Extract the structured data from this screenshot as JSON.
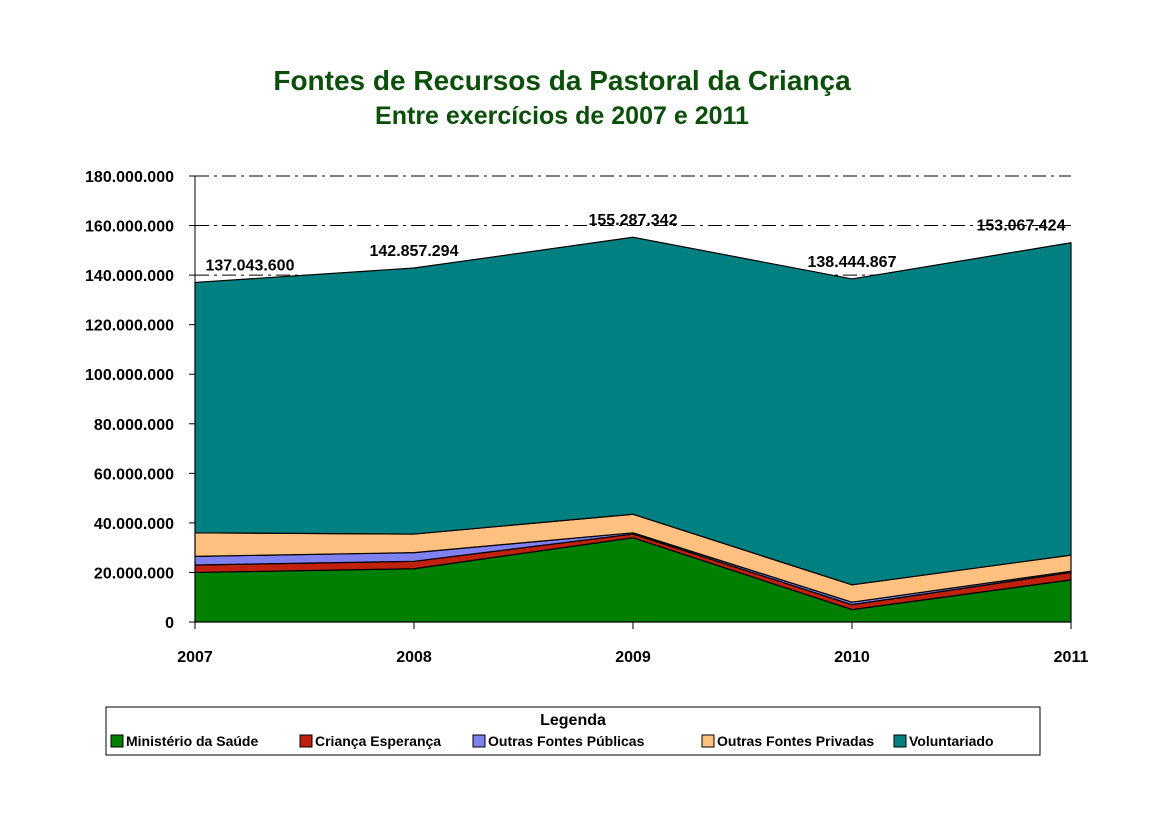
{
  "chart_data": {
    "type": "area",
    "stacked": true,
    "title": "Fontes de Recursos da Pastoral da Criança",
    "subtitle": "Entre exercícios de 2007 e 2011",
    "x": [
      "2007",
      "2008",
      "2009",
      "2010",
      "2011"
    ],
    "ylim": [
      0,
      180000000
    ],
    "yticks": [
      0,
      20000000,
      40000000,
      60000000,
      80000000,
      100000000,
      120000000,
      140000000,
      160000000,
      180000000
    ],
    "ytick_labels": [
      "0",
      "20.000.000",
      "40.000.000",
      "60.000.000",
      "80.000.000",
      "100.000.000",
      "120.000.000",
      "140.000.000",
      "160.000.000",
      "180.000.000"
    ],
    "grid": true,
    "series": [
      {
        "name": "Ministério da Saúde",
        "color": "#007f00",
        "values": [
          20000000,
          21500000,
          34000000,
          5000000,
          17000000
        ]
      },
      {
        "name": "Criança Esperança",
        "color": "#c0200e",
        "values": [
          3000000,
          3000000,
          1500000,
          2000000,
          3000000
        ]
      },
      {
        "name": "Outras Fontes Públicas",
        "color": "#8080f0",
        "values": [
          3500000,
          3500000,
          500000,
          1000000,
          500000
        ]
      },
      {
        "name": "Outras Fontes Privadas",
        "color": "#ffc080",
        "values": [
          9500000,
          7500000,
          7500000,
          7000000,
          6500000
        ]
      },
      {
        "name": "Voluntariado",
        "color": "#008080",
        "values": [
          101043600,
          107357294,
          111787342,
          123444867,
          126067424
        ]
      }
    ],
    "total_labels": [
      "137.043.600",
      "142.857.294",
      "155.287.342",
      "138.444.867",
      "153.067.424"
    ],
    "legend": {
      "title": "Legenda",
      "position": "bottom"
    }
  }
}
